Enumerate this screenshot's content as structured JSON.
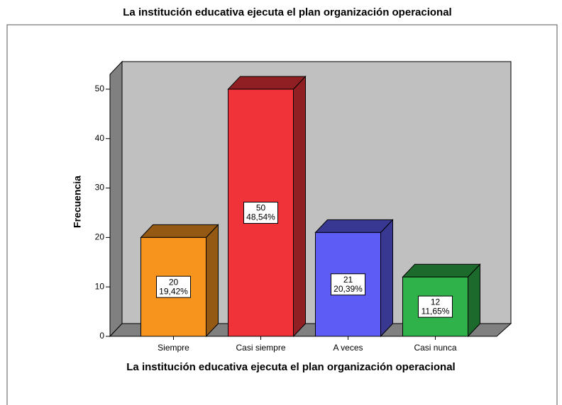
{
  "chart_data": {
    "type": "bar3d",
    "title": "La institución educativa ejecuta el plan organización operacional",
    "x_label": "La institución educativa ejecuta el plan organización operacional",
    "y_label": "Frecuencia",
    "categories": [
      "Siempre",
      "Casi siempre",
      "A veces",
      "Casi nunca"
    ],
    "values": [
      20,
      50,
      21,
      12
    ],
    "percent_labels": [
      "19,42%",
      "48,54%",
      "20,39%",
      "11,65%"
    ],
    "colors": [
      "#f7941e",
      "#ef3339",
      "#5d5cf4",
      "#2fb24a"
    ],
    "ylim": [
      0,
      53
    ],
    "yticks": [
      0,
      10,
      20,
      30,
      40,
      50
    ]
  }
}
